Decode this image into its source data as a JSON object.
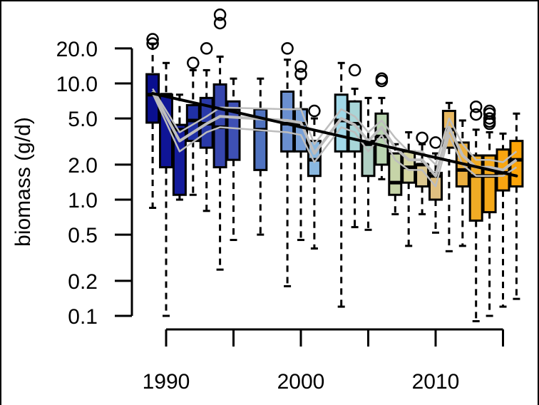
{
  "chart_data": {
    "type": "box",
    "title": "",
    "xlabel": "",
    "ylabel": "biomass (g/d)",
    "yscale": "log",
    "ylim": [
      0.1,
      20.0
    ],
    "y_ticks": [
      "20.0",
      "10.0",
      "5.0",
      "2.0",
      "1.0",
      "0.5",
      "0.2",
      "0.1"
    ],
    "x_ticks": [
      1990,
      1995,
      2000,
      2005,
      2010,
      2015
    ],
    "x_tick_labels": [
      "1990",
      "2000",
      "2010"
    ],
    "grid": false,
    "legend": null,
    "boxes": [
      {
        "year": 1989,
        "color": "#0a0f8f",
        "whisker_low": 0.85,
        "q1": 4.6,
        "median": 8.0,
        "q3": 12.0,
        "whisker_high": 22,
        "outliers": [
          24,
          22
        ]
      },
      {
        "year": 1990,
        "color": "#0f1596",
        "whisker_low": 0.1,
        "q1": 1.9,
        "median": 8.0,
        "q3": 8.0,
        "whisker_high": 15,
        "outliers": []
      },
      {
        "year": 1991,
        "color": "#141c9c",
        "whisker_low": 1.0,
        "q1": 1.1,
        "median": 4.0,
        "q3": 4.4,
        "whisker_high": 8.0,
        "outliers": []
      },
      {
        "year": 1992,
        "color": "#2030a5",
        "whisker_low": 1.1,
        "q1": 3.2,
        "median": 4.8,
        "q3": 6.5,
        "whisker_high": 13,
        "outliers": [
          15
        ]
      },
      {
        "year": 1993,
        "color": "#2a3aa9",
        "whisker_low": 0.8,
        "q1": 2.8,
        "median": 4.5,
        "q3": 7.5,
        "whisker_high": 13,
        "outliers": [
          20
        ]
      },
      {
        "year": 1994,
        "color": "#3646ae",
        "whisker_low": 0.25,
        "q1": 1.9,
        "median": 4.2,
        "q3": 9.8,
        "whisker_high": 17,
        "outliers": [
          33,
          39
        ]
      },
      {
        "year": 1995,
        "color": "#3e50b5",
        "whisker_low": 0.45,
        "q1": 2.2,
        "median": 6.0,
        "q3": 7.0,
        "whisker_high": 11,
        "outliers": []
      },
      {
        "year": 1997,
        "color": "#5073c0",
        "whisker_low": 0.5,
        "q1": 1.8,
        "median": 4.0,
        "q3": 6.0,
        "whisker_high": 11,
        "outliers": []
      },
      {
        "year": 1999,
        "color": "#6a8fd0",
        "whisker_low": 0.18,
        "q1": 2.6,
        "median": 4.5,
        "q3": 8.5,
        "whisker_high": 16,
        "outliers": [
          20
        ]
      },
      {
        "year": 2000,
        "color": "#78a0d8",
        "whisker_low": 0.45,
        "q1": 2.6,
        "median": 4.5,
        "q3": 6.0,
        "whisker_high": 11,
        "outliers": [
          12,
          14
        ]
      },
      {
        "year": 2001,
        "color": "#8ab8e0",
        "whisker_low": 0.38,
        "q1": 1.6,
        "median": 2.2,
        "q3": 3.2,
        "whisker_high": 5.0,
        "outliers": [
          5.8
        ]
      },
      {
        "year": 2003,
        "color": "#a0d8e8",
        "whisker_low": 0.12,
        "q1": 2.6,
        "median": 4.8,
        "q3": 8.0,
        "whisker_high": 15,
        "outliers": []
      },
      {
        "year": 2004,
        "color": "#a8d6d8",
        "whisker_low": 0.58,
        "q1": 2.6,
        "median": 4.5,
        "q3": 7.0,
        "whisker_high": 9.0,
        "outliers": [
          13
        ]
      },
      {
        "year": 2005,
        "color": "#b0d0c4",
        "whisker_low": 0.55,
        "q1": 1.6,
        "median": 3.0,
        "q3": 3.2,
        "whisker_high": 7.5,
        "outliers": []
      },
      {
        "year": 2006,
        "color": "#b8d4b0",
        "whisker_low": 1.5,
        "q1": 2.0,
        "median": 3.5,
        "q3": 5.5,
        "whisker_high": 7.5,
        "outliers": [
          10.5,
          11
        ]
      },
      {
        "year": 2007,
        "color": "#c6d4a8",
        "whisker_low": 0.75,
        "q1": 1.1,
        "median": 1.4,
        "q3": 2.5,
        "whisker_high": 3.0,
        "outliers": []
      },
      {
        "year": 2008,
        "color": "#d4d4a0",
        "whisker_low": 0.4,
        "q1": 1.4,
        "median": 1.9,
        "q3": 2.6,
        "whisker_high": 3.8,
        "outliers": []
      },
      {
        "year": 2009,
        "color": "#dcc890",
        "whisker_low": 0.75,
        "q1": 1.3,
        "median": 2.0,
        "q3": 2.0,
        "whisker_high": 3.0,
        "outliers": [
          3.4
        ]
      },
      {
        "year": 2010,
        "color": "#e0c080",
        "whisker_low": 0.52,
        "q1": 1.0,
        "median": 1.6,
        "q3": 1.7,
        "whisker_high": 2.5,
        "outliers": [
          3.1
        ]
      },
      {
        "year": 2011,
        "color": "#e8b860",
        "whisker_low": 0.36,
        "q1": 2.8,
        "median": 4.0,
        "q3": 5.8,
        "whisker_high": 6.8,
        "outliers": []
      },
      {
        "year": 2012,
        "color": "#ecb040",
        "whisker_low": 0.4,
        "q1": 1.3,
        "median": 1.8,
        "q3": 3.1,
        "whisker_high": 4.8,
        "outliers": []
      },
      {
        "year": 2013,
        "color": "#f0ac25",
        "whisker_low": 0.09,
        "q1": 0.66,
        "median": 1.6,
        "q3": 2.4,
        "whisker_high": 4.0,
        "outliers": [
          5.4,
          6.3
        ]
      },
      {
        "year": 2014,
        "color": "#f4a818",
        "whisker_low": 0.1,
        "q1": 0.78,
        "median": 1.6,
        "q3": 2.4,
        "whisker_high": 3.8,
        "outliers": [
          4.5,
          4.7,
          5.0,
          5.5,
          5.8
        ]
      },
      {
        "year": 2015,
        "color": "#f8a510",
        "whisker_low": 0.12,
        "q1": 1.2,
        "median": 1.7,
        "q3": 2.7,
        "whisker_high": 3.7,
        "outliers": []
      },
      {
        "year": 2016,
        "color": "#fca408",
        "whisker_low": 0.14,
        "q1": 1.3,
        "median": 2.2,
        "q3": 3.2,
        "whisker_high": 5.5,
        "outliers": []
      }
    ],
    "trend_line": {
      "color": "#000000",
      "from": {
        "year": 1989,
        "value": 8.2
      },
      "to": {
        "year": 2016,
        "value": 1.6
      }
    },
    "mean_lines": {
      "color": "#bdbdbd",
      "series": [
        {
          "name": "upper",
          "values": [
            [
              1989,
              9.0
            ],
            [
              1991,
              3.8
            ],
            [
              1993,
              5.2
            ],
            [
              1994,
              6.2
            ],
            [
              1999,
              6.0
            ],
            [
              2000,
              6.0
            ],
            [
              2001,
              3.0
            ],
            [
              2003,
              6.0
            ],
            [
              2004,
              5.2
            ],
            [
              2005,
              3.8
            ],
            [
              2006,
              4.8
            ],
            [
              2007,
              3.4
            ],
            [
              2008,
              2.6
            ],
            [
              2009,
              2.6
            ],
            [
              2010,
              2.0
            ],
            [
              2011,
              5.0
            ],
            [
              2012,
              3.0
            ],
            [
              2013,
              2.2
            ],
            [
              2014,
              2.2
            ],
            [
              2015,
              2.1
            ],
            [
              2016,
              2.6
            ]
          ]
        },
        {
          "name": "mean",
          "values": [
            [
              1989,
              8.6
            ],
            [
              1991,
              3.2
            ],
            [
              1993,
              4.5
            ],
            [
              1994,
              5.2
            ],
            [
              1999,
              4.8
            ],
            [
              2000,
              4.6
            ],
            [
              2001,
              2.5
            ],
            [
              2003,
              5.0
            ],
            [
              2004,
              4.4
            ],
            [
              2005,
              3.2
            ],
            [
              2006,
              4.2
            ],
            [
              2007,
              2.8
            ],
            [
              2008,
              2.2
            ],
            [
              2009,
              2.2
            ],
            [
              2010,
              1.6
            ],
            [
              2011,
              4.2
            ],
            [
              2012,
              2.4
            ],
            [
              2013,
              1.9
            ],
            [
              2014,
              1.9
            ],
            [
              2015,
              1.8
            ],
            [
              2016,
              2.2
            ]
          ]
        },
        {
          "name": "lower",
          "values": [
            [
              1989,
              8.2
            ],
            [
              1991,
              2.6
            ],
            [
              1993,
              3.8
            ],
            [
              1994,
              4.2
            ],
            [
              1999,
              3.8
            ],
            [
              2000,
              3.6
            ],
            [
              2001,
              2.1
            ],
            [
              2003,
              4.2
            ],
            [
              2004,
              3.8
            ],
            [
              2005,
              2.6
            ],
            [
              2006,
              3.6
            ],
            [
              2007,
              2.2
            ],
            [
              2008,
              1.8
            ],
            [
              2009,
              1.8
            ],
            [
              2010,
              1.3
            ],
            [
              2011,
              3.6
            ],
            [
              2012,
              2.0
            ],
            [
              2013,
              1.6
            ],
            [
              2014,
              1.6
            ],
            [
              2015,
              1.6
            ],
            [
              2016,
              1.9
            ]
          ]
        }
      ]
    }
  }
}
